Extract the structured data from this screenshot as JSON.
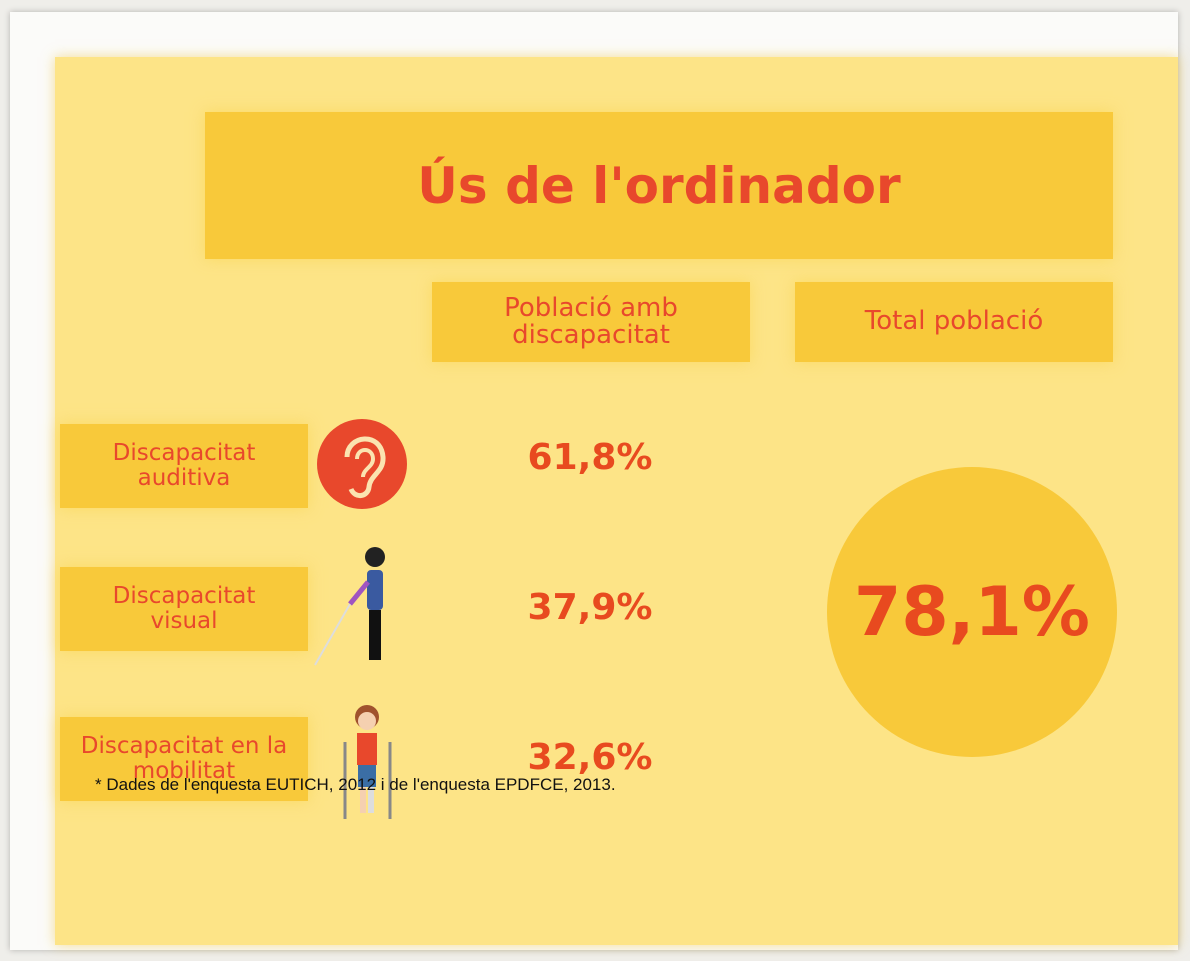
{
  "title": "Ús de l'ordinador",
  "columns": [
    "Població amb discapacitat",
    "Total població"
  ],
  "rows": [
    {
      "label": "Discapacitat auditiva",
      "value": "61,8%"
    },
    {
      "label": "Discapacitat visual",
      "value": "37,9%"
    },
    {
      "label": "Discapacitat en la mobilitat",
      "value": "32,6%"
    }
  ],
  "total": "78,1%",
  "footnote": "* Dades de l'enquesta EUTICH, 2012 i de l'enquesta EPDFCE, 2013."
}
